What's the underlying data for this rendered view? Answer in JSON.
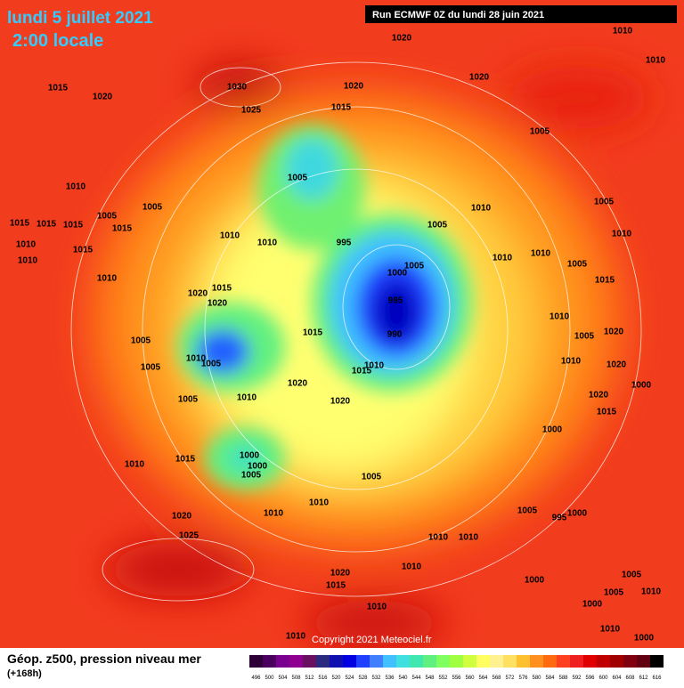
{
  "header": {
    "title_date": "lundi 5 juillet 2021",
    "title_time": "2:00 locale",
    "run_info": "Run ECMWF 0Z du lundi 28 juin 2021"
  },
  "pressure_labels": [
    1020,
    1010,
    1010,
    1020,
    1015,
    1020,
    1030,
    1020,
    1025,
    1015,
    1005,
    1005,
    1010,
    1005,
    1005,
    1010,
    1005,
    1005,
    1015,
    1015,
    1015,
    1015,
    995,
    1010,
    1010,
    1010,
    1010,
    1015,
    1010,
    1010,
    1005,
    1000,
    1005,
    1010,
    1010,
    1015,
    1015,
    1020,
    995,
    1020,
    1010,
    990,
    1015,
    1005,
    1010,
    1005,
    1010,
    1015,
    1005,
    1020,
    1010,
    1020,
    1005,
    1000,
    1015,
    1010,
    1000,
    1000,
    1005,
    1005,
    1010,
    1010,
    1020,
    1025,
    1005,
    995,
    1000,
    1010,
    1010,
    1020,
    1015,
    1010,
    1010,
    1010,
    1000,
    1005,
    1005,
    1010,
    1000,
    1010,
    1000,
    1020,
    1020,
    1020,
    1015,
    1000,
    1010,
    1005
  ],
  "footer": {
    "legend_title": "Géop. z500, pression niveau mer",
    "legend_subtitle": "(+168h)",
    "copyright": "Copyright 2021 Meteociel.fr"
  },
  "colorbar": {
    "levels": [
      496,
      500,
      504,
      508,
      512,
      516,
      520,
      524,
      528,
      532,
      536,
      540,
      544,
      548,
      552,
      556,
      560,
      564,
      568,
      572,
      576,
      580,
      584,
      588,
      592,
      596,
      600,
      604,
      608,
      612,
      616
    ],
    "colors": [
      "#2e0038",
      "#4b0060",
      "#7a0090",
      "#900090",
      "#6a1060",
      "#2a2a80",
      "#1010b0",
      "#0000e0",
      "#2040ff",
      "#4080ff",
      "#40c0ff",
      "#40e0e0",
      "#40e8b0",
      "#60f080",
      "#80ff60",
      "#a0ff40",
      "#d0ff40",
      "#ffff60",
      "#fff090",
      "#ffe060",
      "#ffc030",
      "#ff9020",
      "#ff6a10",
      "#ff4020",
      "#f02020",
      "#e00000",
      "#c00000",
      "#a00000",
      "#800010",
      "#600010",
      "#000000"
    ]
  }
}
